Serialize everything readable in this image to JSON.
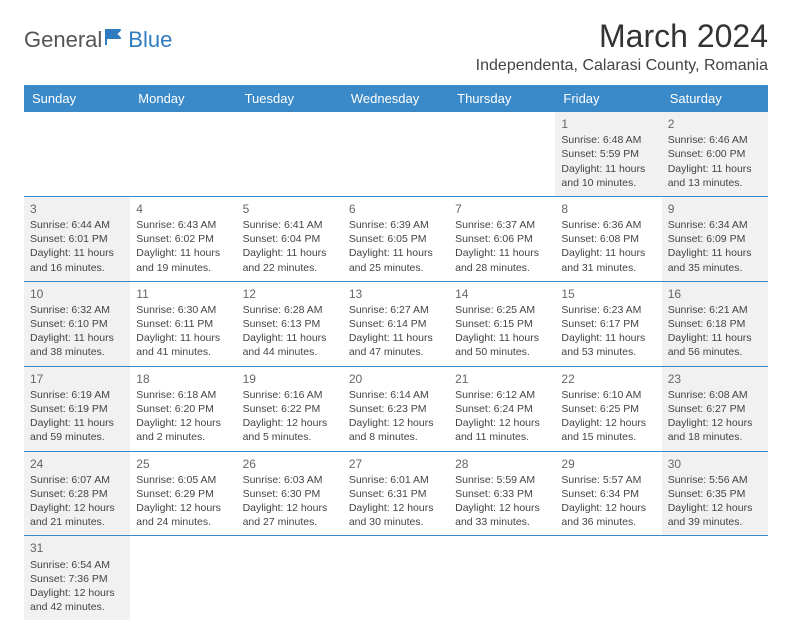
{
  "logo": {
    "text1": "General",
    "text2": "Blue"
  },
  "title": "March 2024",
  "location": "Independenta, Calarasi County, Romania",
  "colors": {
    "header_bg": "#3a89c9",
    "header_text": "#ffffff",
    "shaded_bg": "#f1f1f1",
    "border": "#3a89c9",
    "logo_gray": "#555555",
    "logo_blue": "#2f7bbf"
  },
  "day_headers": [
    "Sunday",
    "Monday",
    "Tuesday",
    "Wednesday",
    "Thursday",
    "Friday",
    "Saturday"
  ],
  "weeks": [
    [
      {
        "empty": true
      },
      {
        "empty": true
      },
      {
        "empty": true
      },
      {
        "empty": true
      },
      {
        "empty": true
      },
      {
        "n": "1",
        "sunrise": "Sunrise: 6:48 AM",
        "sunset": "Sunset: 5:59 PM",
        "daylight": "Daylight: 11 hours and 10 minutes.",
        "shaded": true
      },
      {
        "n": "2",
        "sunrise": "Sunrise: 6:46 AM",
        "sunset": "Sunset: 6:00 PM",
        "daylight": "Daylight: 11 hours and 13 minutes.",
        "shaded": true
      }
    ],
    [
      {
        "n": "3",
        "sunrise": "Sunrise: 6:44 AM",
        "sunset": "Sunset: 6:01 PM",
        "daylight": "Daylight: 11 hours and 16 minutes.",
        "shaded": true
      },
      {
        "n": "4",
        "sunrise": "Sunrise: 6:43 AM",
        "sunset": "Sunset: 6:02 PM",
        "daylight": "Daylight: 11 hours and 19 minutes."
      },
      {
        "n": "5",
        "sunrise": "Sunrise: 6:41 AM",
        "sunset": "Sunset: 6:04 PM",
        "daylight": "Daylight: 11 hours and 22 minutes."
      },
      {
        "n": "6",
        "sunrise": "Sunrise: 6:39 AM",
        "sunset": "Sunset: 6:05 PM",
        "daylight": "Daylight: 11 hours and 25 minutes."
      },
      {
        "n": "7",
        "sunrise": "Sunrise: 6:37 AM",
        "sunset": "Sunset: 6:06 PM",
        "daylight": "Daylight: 11 hours and 28 minutes."
      },
      {
        "n": "8",
        "sunrise": "Sunrise: 6:36 AM",
        "sunset": "Sunset: 6:08 PM",
        "daylight": "Daylight: 11 hours and 31 minutes."
      },
      {
        "n": "9",
        "sunrise": "Sunrise: 6:34 AM",
        "sunset": "Sunset: 6:09 PM",
        "daylight": "Daylight: 11 hours and 35 minutes.",
        "shaded": true
      }
    ],
    [
      {
        "n": "10",
        "sunrise": "Sunrise: 6:32 AM",
        "sunset": "Sunset: 6:10 PM",
        "daylight": "Daylight: 11 hours and 38 minutes.",
        "shaded": true
      },
      {
        "n": "11",
        "sunrise": "Sunrise: 6:30 AM",
        "sunset": "Sunset: 6:11 PM",
        "daylight": "Daylight: 11 hours and 41 minutes."
      },
      {
        "n": "12",
        "sunrise": "Sunrise: 6:28 AM",
        "sunset": "Sunset: 6:13 PM",
        "daylight": "Daylight: 11 hours and 44 minutes."
      },
      {
        "n": "13",
        "sunrise": "Sunrise: 6:27 AM",
        "sunset": "Sunset: 6:14 PM",
        "daylight": "Daylight: 11 hours and 47 minutes."
      },
      {
        "n": "14",
        "sunrise": "Sunrise: 6:25 AM",
        "sunset": "Sunset: 6:15 PM",
        "daylight": "Daylight: 11 hours and 50 minutes."
      },
      {
        "n": "15",
        "sunrise": "Sunrise: 6:23 AM",
        "sunset": "Sunset: 6:17 PM",
        "daylight": "Daylight: 11 hours and 53 minutes."
      },
      {
        "n": "16",
        "sunrise": "Sunrise: 6:21 AM",
        "sunset": "Sunset: 6:18 PM",
        "daylight": "Daylight: 11 hours and 56 minutes.",
        "shaded": true
      }
    ],
    [
      {
        "n": "17",
        "sunrise": "Sunrise: 6:19 AM",
        "sunset": "Sunset: 6:19 PM",
        "daylight": "Daylight: 11 hours and 59 minutes.",
        "shaded": true
      },
      {
        "n": "18",
        "sunrise": "Sunrise: 6:18 AM",
        "sunset": "Sunset: 6:20 PM",
        "daylight": "Daylight: 12 hours and 2 minutes."
      },
      {
        "n": "19",
        "sunrise": "Sunrise: 6:16 AM",
        "sunset": "Sunset: 6:22 PM",
        "daylight": "Daylight: 12 hours and 5 minutes."
      },
      {
        "n": "20",
        "sunrise": "Sunrise: 6:14 AM",
        "sunset": "Sunset: 6:23 PM",
        "daylight": "Daylight: 12 hours and 8 minutes."
      },
      {
        "n": "21",
        "sunrise": "Sunrise: 6:12 AM",
        "sunset": "Sunset: 6:24 PM",
        "daylight": "Daylight: 12 hours and 11 minutes."
      },
      {
        "n": "22",
        "sunrise": "Sunrise: 6:10 AM",
        "sunset": "Sunset: 6:25 PM",
        "daylight": "Daylight: 12 hours and 15 minutes."
      },
      {
        "n": "23",
        "sunrise": "Sunrise: 6:08 AM",
        "sunset": "Sunset: 6:27 PM",
        "daylight": "Daylight: 12 hours and 18 minutes.",
        "shaded": true
      }
    ],
    [
      {
        "n": "24",
        "sunrise": "Sunrise: 6:07 AM",
        "sunset": "Sunset: 6:28 PM",
        "daylight": "Daylight: 12 hours and 21 minutes.",
        "shaded": true
      },
      {
        "n": "25",
        "sunrise": "Sunrise: 6:05 AM",
        "sunset": "Sunset: 6:29 PM",
        "daylight": "Daylight: 12 hours and 24 minutes."
      },
      {
        "n": "26",
        "sunrise": "Sunrise: 6:03 AM",
        "sunset": "Sunset: 6:30 PM",
        "daylight": "Daylight: 12 hours and 27 minutes."
      },
      {
        "n": "27",
        "sunrise": "Sunrise: 6:01 AM",
        "sunset": "Sunset: 6:31 PM",
        "daylight": "Daylight: 12 hours and 30 minutes."
      },
      {
        "n": "28",
        "sunrise": "Sunrise: 5:59 AM",
        "sunset": "Sunset: 6:33 PM",
        "daylight": "Daylight: 12 hours and 33 minutes."
      },
      {
        "n": "29",
        "sunrise": "Sunrise: 5:57 AM",
        "sunset": "Sunset: 6:34 PM",
        "daylight": "Daylight: 12 hours and 36 minutes."
      },
      {
        "n": "30",
        "sunrise": "Sunrise: 5:56 AM",
        "sunset": "Sunset: 6:35 PM",
        "daylight": "Daylight: 12 hours and 39 minutes.",
        "shaded": true
      }
    ],
    [
      {
        "n": "31",
        "sunrise": "Sunrise: 6:54 AM",
        "sunset": "Sunset: 7:36 PM",
        "daylight": "Daylight: 12 hours and 42 minutes.",
        "shaded": true
      },
      {
        "empty": true
      },
      {
        "empty": true
      },
      {
        "empty": true
      },
      {
        "empty": true
      },
      {
        "empty": true
      },
      {
        "empty": true
      }
    ]
  ]
}
